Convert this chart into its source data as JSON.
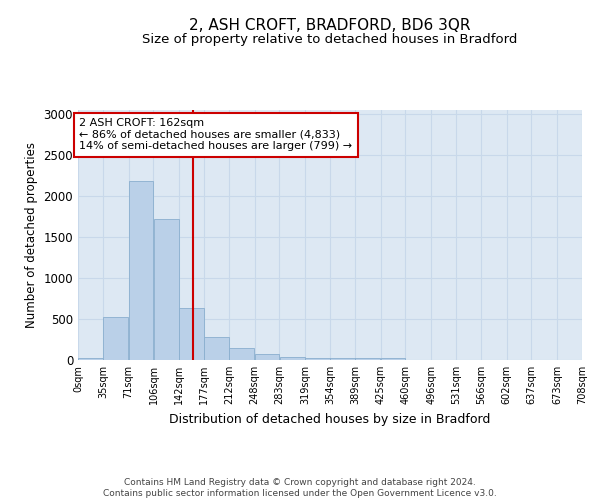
{
  "title": "2, ASH CROFT, BRADFORD, BD6 3QR",
  "subtitle": "Size of property relative to detached houses in Bradford",
  "xlabel": "Distribution of detached houses by size in Bradford",
  "ylabel": "Number of detached properties",
  "footer_line1": "Contains HM Land Registry data © Crown copyright and database right 2024.",
  "footer_line2": "Contains public sector information licensed under the Open Government Licence v3.0.",
  "annotation_line1": "2 ASH CROFT: 162sqm",
  "annotation_line2": "← 86% of detached houses are smaller (4,833)",
  "annotation_line3": "14% of semi-detached houses are larger (799) →",
  "bin_edges": [
    0,
    35,
    71,
    106,
    142,
    177,
    212,
    248,
    283,
    319,
    354,
    389,
    425,
    460,
    496,
    531,
    566,
    602,
    637,
    673,
    708
  ],
  "bar_heights": [
    30,
    520,
    2180,
    1720,
    635,
    280,
    150,
    70,
    40,
    30,
    20,
    20,
    20,
    5,
    5,
    5,
    5,
    5,
    5,
    5
  ],
  "bar_color": "#bad0e8",
  "bar_edge_color": "#8aaece",
  "vline_color": "#cc0000",
  "vline_x": 162,
  "ylim": [
    0,
    3050
  ],
  "yticks": [
    0,
    500,
    1000,
    1500,
    2000,
    2500,
    3000
  ],
  "grid_color": "#c8d8ea",
  "bg_color": "#dde8f3",
  "fig_bg_color": "#ffffff",
  "annotation_box_color": "#ffffff",
  "annotation_box_edge": "#cc0000",
  "title_fontsize": 11,
  "subtitle_fontsize": 9.5,
  "tick_label_fontsize": 7,
  "ylabel_fontsize": 8.5,
  "xlabel_fontsize": 9,
  "annotation_fontsize": 8,
  "footer_fontsize": 6.5
}
